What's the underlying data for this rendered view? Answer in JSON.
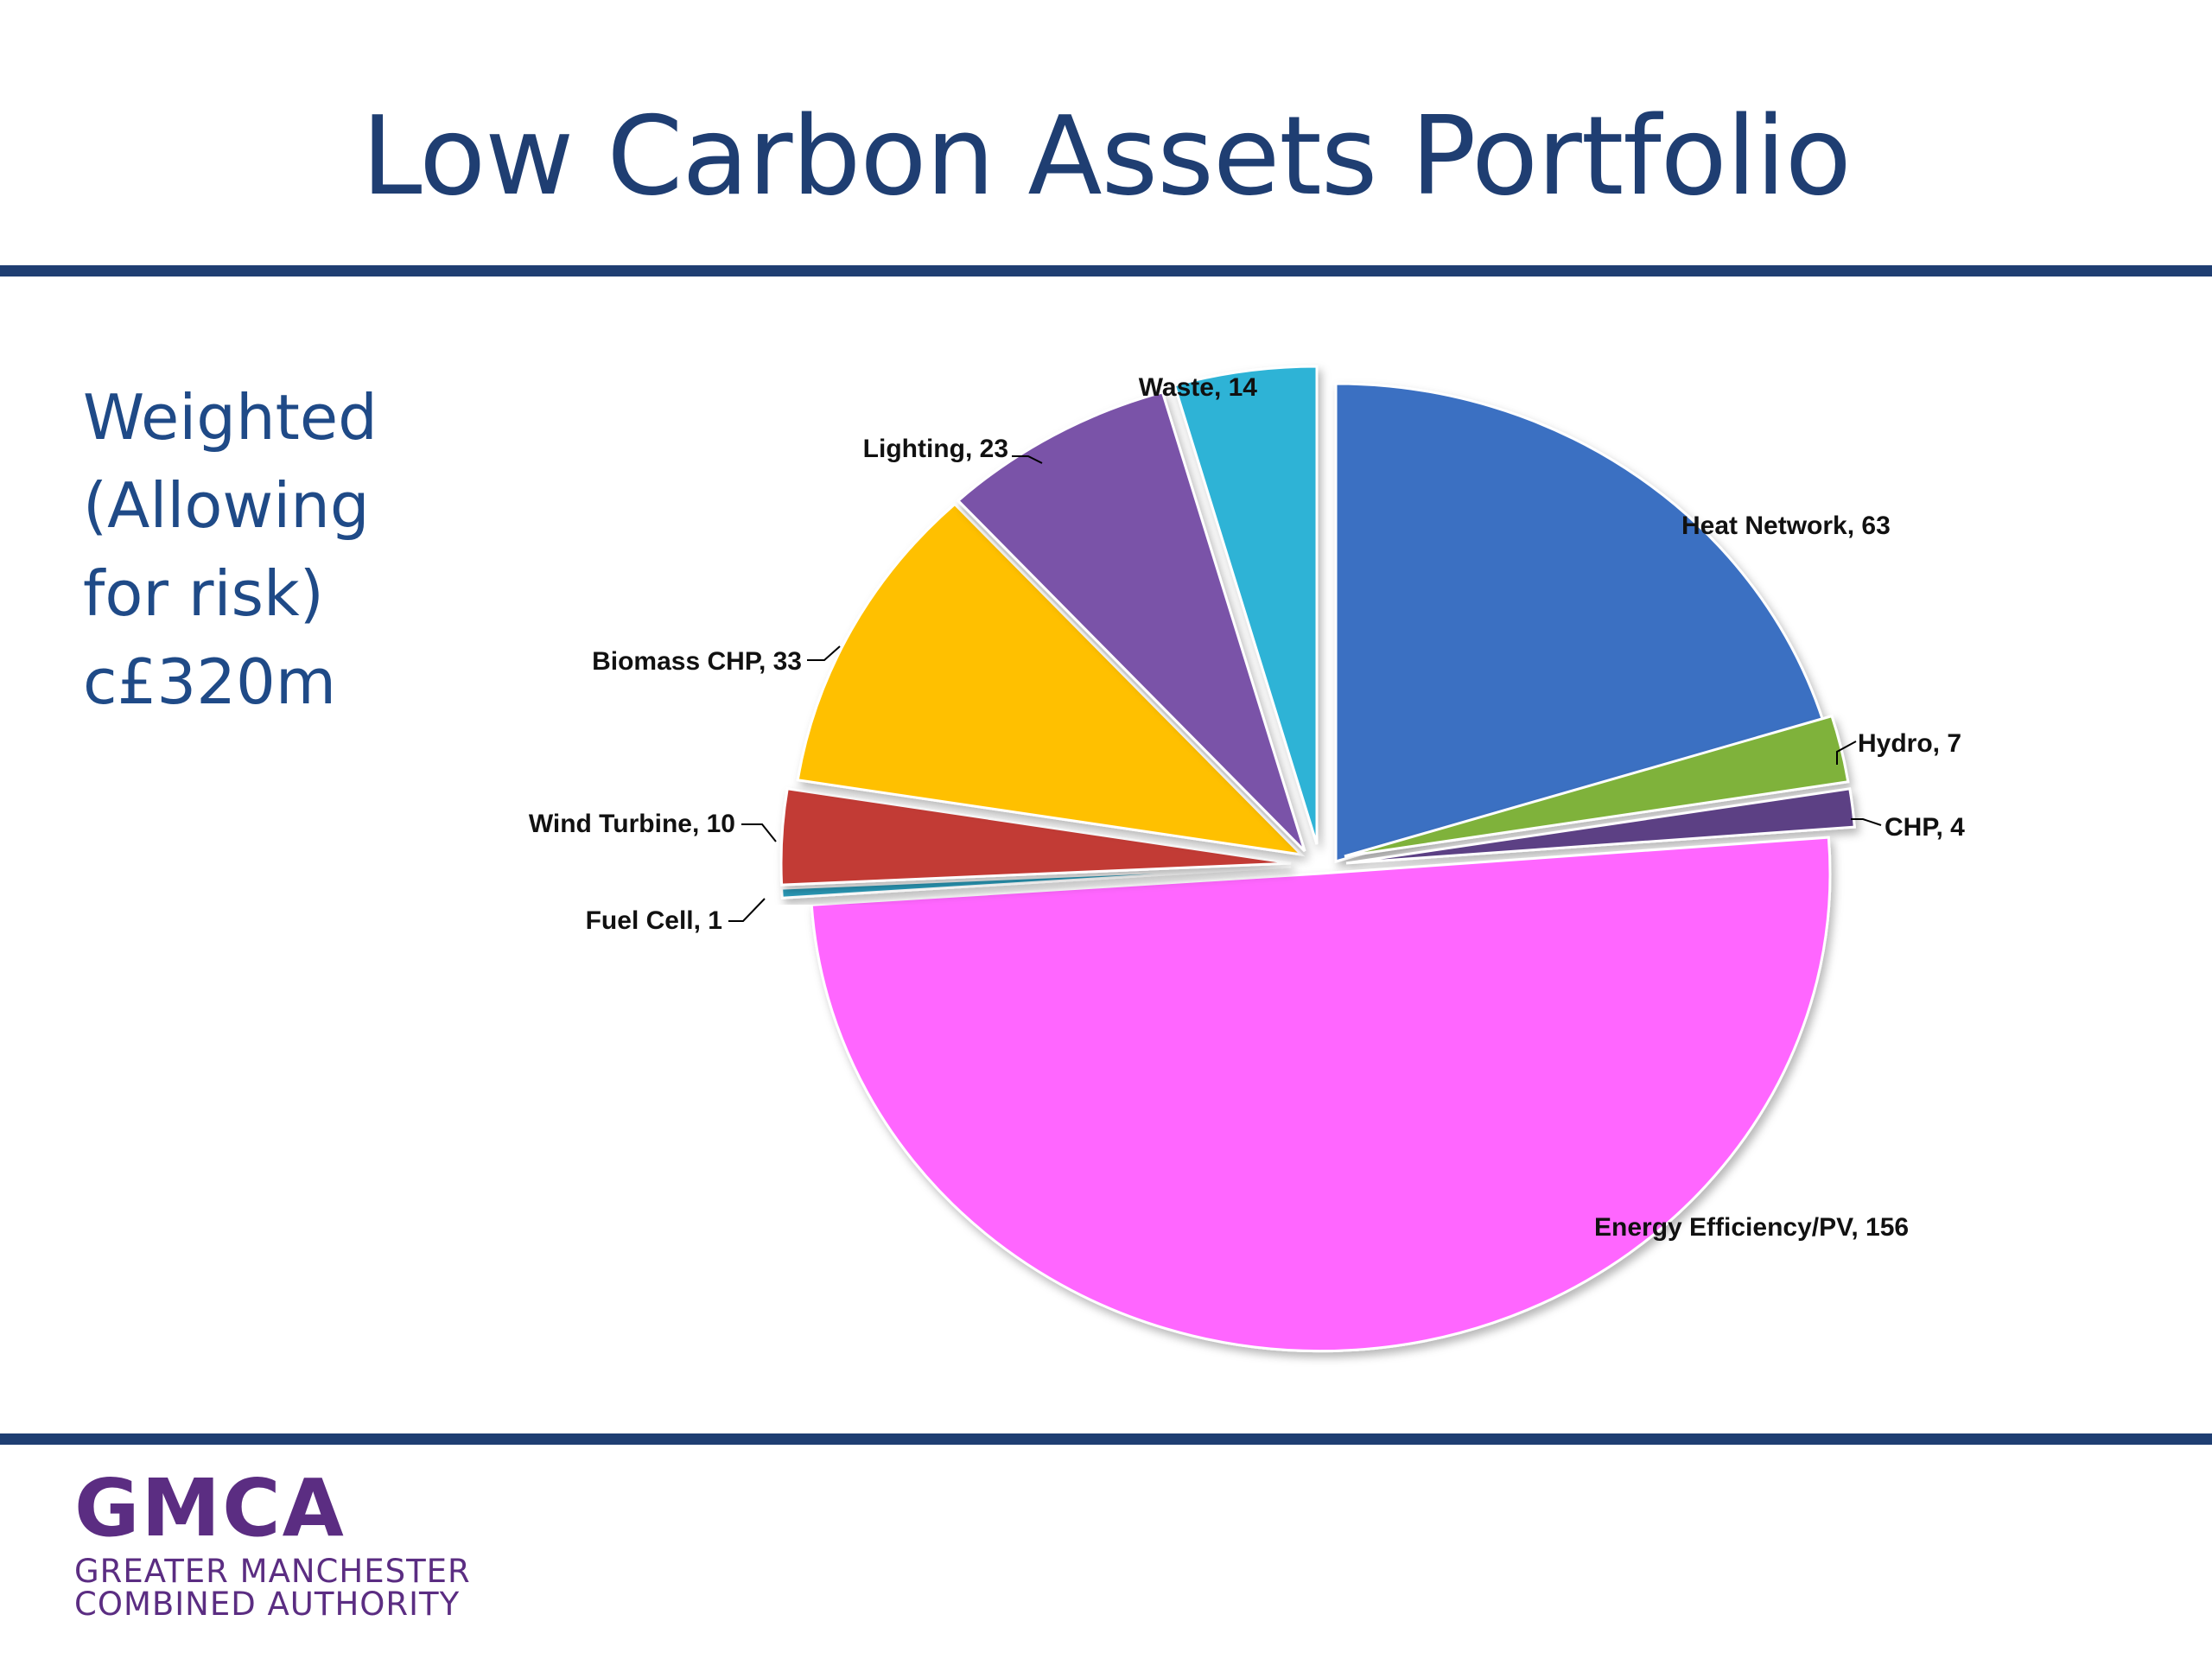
{
  "slide": {
    "title": "Low Carbon Assets Portfolio",
    "side_text": [
      "Weighted",
      "(Allowing",
      "for risk)",
      "c£320m"
    ],
    "logo": {
      "mark": "GMCA",
      "line1": "GREATER MANCHESTER",
      "line2": "COMBINED AUTHORITY"
    }
  },
  "colors": {
    "title": "#1f3e72",
    "rule": "#1f3e72",
    "side_text": "#1f4a87",
    "logo": "#5b2d82"
  },
  "chart_data": {
    "type": "pie",
    "title": "",
    "style": "exploded",
    "slices": [
      {
        "label": "Heat Network, 63",
        "category": "Heat Network",
        "value": 63,
        "color": "#3a6fc2"
      },
      {
        "label": "Hydro, 7",
        "category": "Hydro",
        "value": 7,
        "color": "#7fb23a"
      },
      {
        "label": "CHP, 4",
        "category": "CHP",
        "value": 4,
        "color": "#5b3f84"
      },
      {
        "label": "Energy Efficiency/PV, 156",
        "category": "Energy Efficiency/PV",
        "value": 156,
        "color": "#ff66ff"
      },
      {
        "label": "Fuel Cell, 1",
        "category": "Fuel Cell",
        "value": 1,
        "color": "#2a9ab8"
      },
      {
        "label": "Wind Turbine, 10",
        "category": "Wind Turbine",
        "value": 10,
        "color": "#c23a35"
      },
      {
        "label": "Biomass CHP, 33",
        "category": "Biomass CHP",
        "value": 33,
        "color": "#ffc000"
      },
      {
        "label": "Lighting, 23",
        "category": "Lighting",
        "value": 23,
        "color": "#7a52a8"
      },
      {
        "label": "Waste, 14",
        "category": "Waste",
        "value": 14,
        "color": "#2fb3d6"
      }
    ]
  }
}
